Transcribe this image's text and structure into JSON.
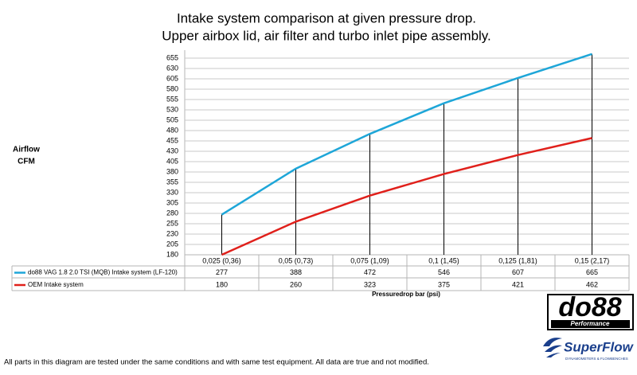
{
  "chart_data": {
    "type": "line",
    "title": "Intake system comparison at given pressure drop.",
    "subtitle": "Upper airbox lid, air filter and turbo inlet pipe assembly.",
    "y_label_lines": [
      "Airflow",
      "CFM"
    ],
    "x_label": "Pressuredrop bar (psi)",
    "categories": [
      "0,025 (0,36)",
      "0,05 (0,73)",
      "0,075 (1,09)",
      "0,1 (1,45)",
      "0,125 (1,81)",
      "0,15 (2,17)"
    ],
    "series": [
      {
        "name": "do88 VAG 1.8 2.0 TSI (MQB) Intake system (LF-120)",
        "color": "#1ea6d8",
        "values": [
          277,
          388,
          472,
          546,
          607,
          665
        ]
      },
      {
        "name": "OEM Intake system",
        "color": "#e0201b",
        "values": [
          180,
          260,
          323,
          375,
          421,
          462
        ]
      }
    ],
    "ylim": [
      180,
      655
    ],
    "yticks": [
      180,
      205,
      230,
      255,
      280,
      305,
      330,
      355,
      380,
      405,
      430,
      455,
      480,
      505,
      530,
      555,
      580,
      605,
      630,
      655
    ],
    "grid": true,
    "drop_lines": true
  },
  "footer": "All parts in this diagram are tested under the same conditions and with same test equipment. All data are true and not modified.",
  "logos": {
    "do88": "do88",
    "do88_sub": "Performance",
    "superflow": "SuperFlow",
    "superflow_sub": "DYNAMOMETERS & FLOWBENCHES"
  }
}
